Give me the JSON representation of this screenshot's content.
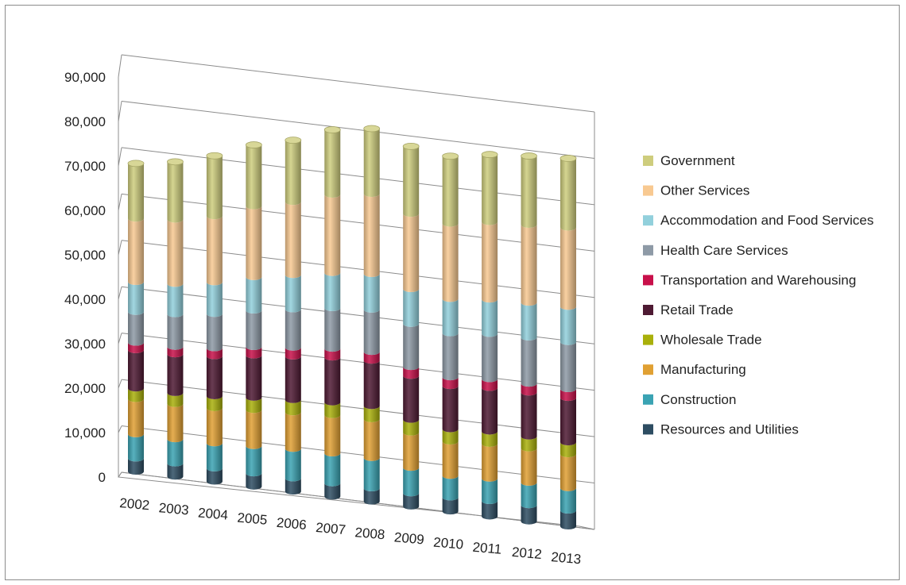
{
  "chart_data": {
    "type": "bar",
    "stacked": true,
    "three_d": true,
    "title": "",
    "xlabel": "",
    "ylabel": "",
    "ylim": [
      0,
      90000
    ],
    "y_ticks": [
      "0",
      "10,000",
      "20,000",
      "30,000",
      "40,000",
      "50,000",
      "60,000",
      "70,000",
      "80,000",
      "90,000"
    ],
    "grid": true,
    "legend_position": "right",
    "categories": [
      "2002",
      "2003",
      "2004",
      "2005",
      "2006",
      "2007",
      "2008",
      "2009",
      "2010",
      "2011",
      "2012",
      "2013"
    ],
    "series": [
      {
        "name": "Resources and Utilities",
        "color": "#2e4d62",
        "values": [
          3000,
          3000,
          3000,
          3000,
          3000,
          3000,
          3000,
          3000,
          3200,
          3500,
          3700,
          3600
        ]
      },
      {
        "name": "Construction",
        "color": "#3aa3b3",
        "values": [
          5500,
          5500,
          5700,
          6200,
          6700,
          6800,
          6900,
          5800,
          4900,
          5100,
          5100,
          5100
        ]
      },
      {
        "name": "Manufacturing",
        "color": "#e0a033",
        "values": [
          8000,
          8000,
          8000,
          8200,
          8300,
          8700,
          8800,
          8000,
          7800,
          7900,
          7800,
          7700
        ]
      },
      {
        "name": "Wholesale Trade",
        "color": "#a9b00b",
        "values": [
          2400,
          2500,
          2700,
          2800,
          2800,
          2900,
          3000,
          2900,
          2800,
          2800,
          2700,
          2700
        ]
      },
      {
        "name": "Retail Trade",
        "color": "#4e1a33",
        "values": [
          8700,
          8800,
          9100,
          9600,
          9900,
          10200,
          10300,
          10000,
          9800,
          9900,
          10000,
          10100
        ]
      },
      {
        "name": "Transportation and Warehousing",
        "color": "#c8104a",
        "values": [
          1700,
          1700,
          1800,
          1900,
          2000,
          2000,
          2000,
          2000,
          2000,
          2000,
          2000,
          2000
        ]
      },
      {
        "name": "Health Care Services",
        "color": "#8e9aa6",
        "values": [
          7000,
          7400,
          7800,
          8300,
          8700,
          9200,
          9600,
          9800,
          10000,
          10300,
          10500,
          10700
        ]
      },
      {
        "name": "Accommodation and Food Services",
        "color": "#92d0dc",
        "values": [
          6800,
          6900,
          7200,
          7600,
          7800,
          8000,
          8100,
          7900,
          7800,
          7800,
          7900,
          8000
        ]
      },
      {
        "name": "Other Services",
        "color": "#f8c991",
        "values": [
          14400,
          14600,
          15000,
          16100,
          16600,
          17800,
          18200,
          17100,
          17100,
          17600,
          17700,
          18000
        ]
      },
      {
        "name": "Government",
        "color": "#cecd7d",
        "values": [
          12500,
          13100,
          13700,
          13900,
          14000,
          14700,
          14800,
          15300,
          15300,
          15300,
          15600,
          15700
        ]
      }
    ]
  }
}
